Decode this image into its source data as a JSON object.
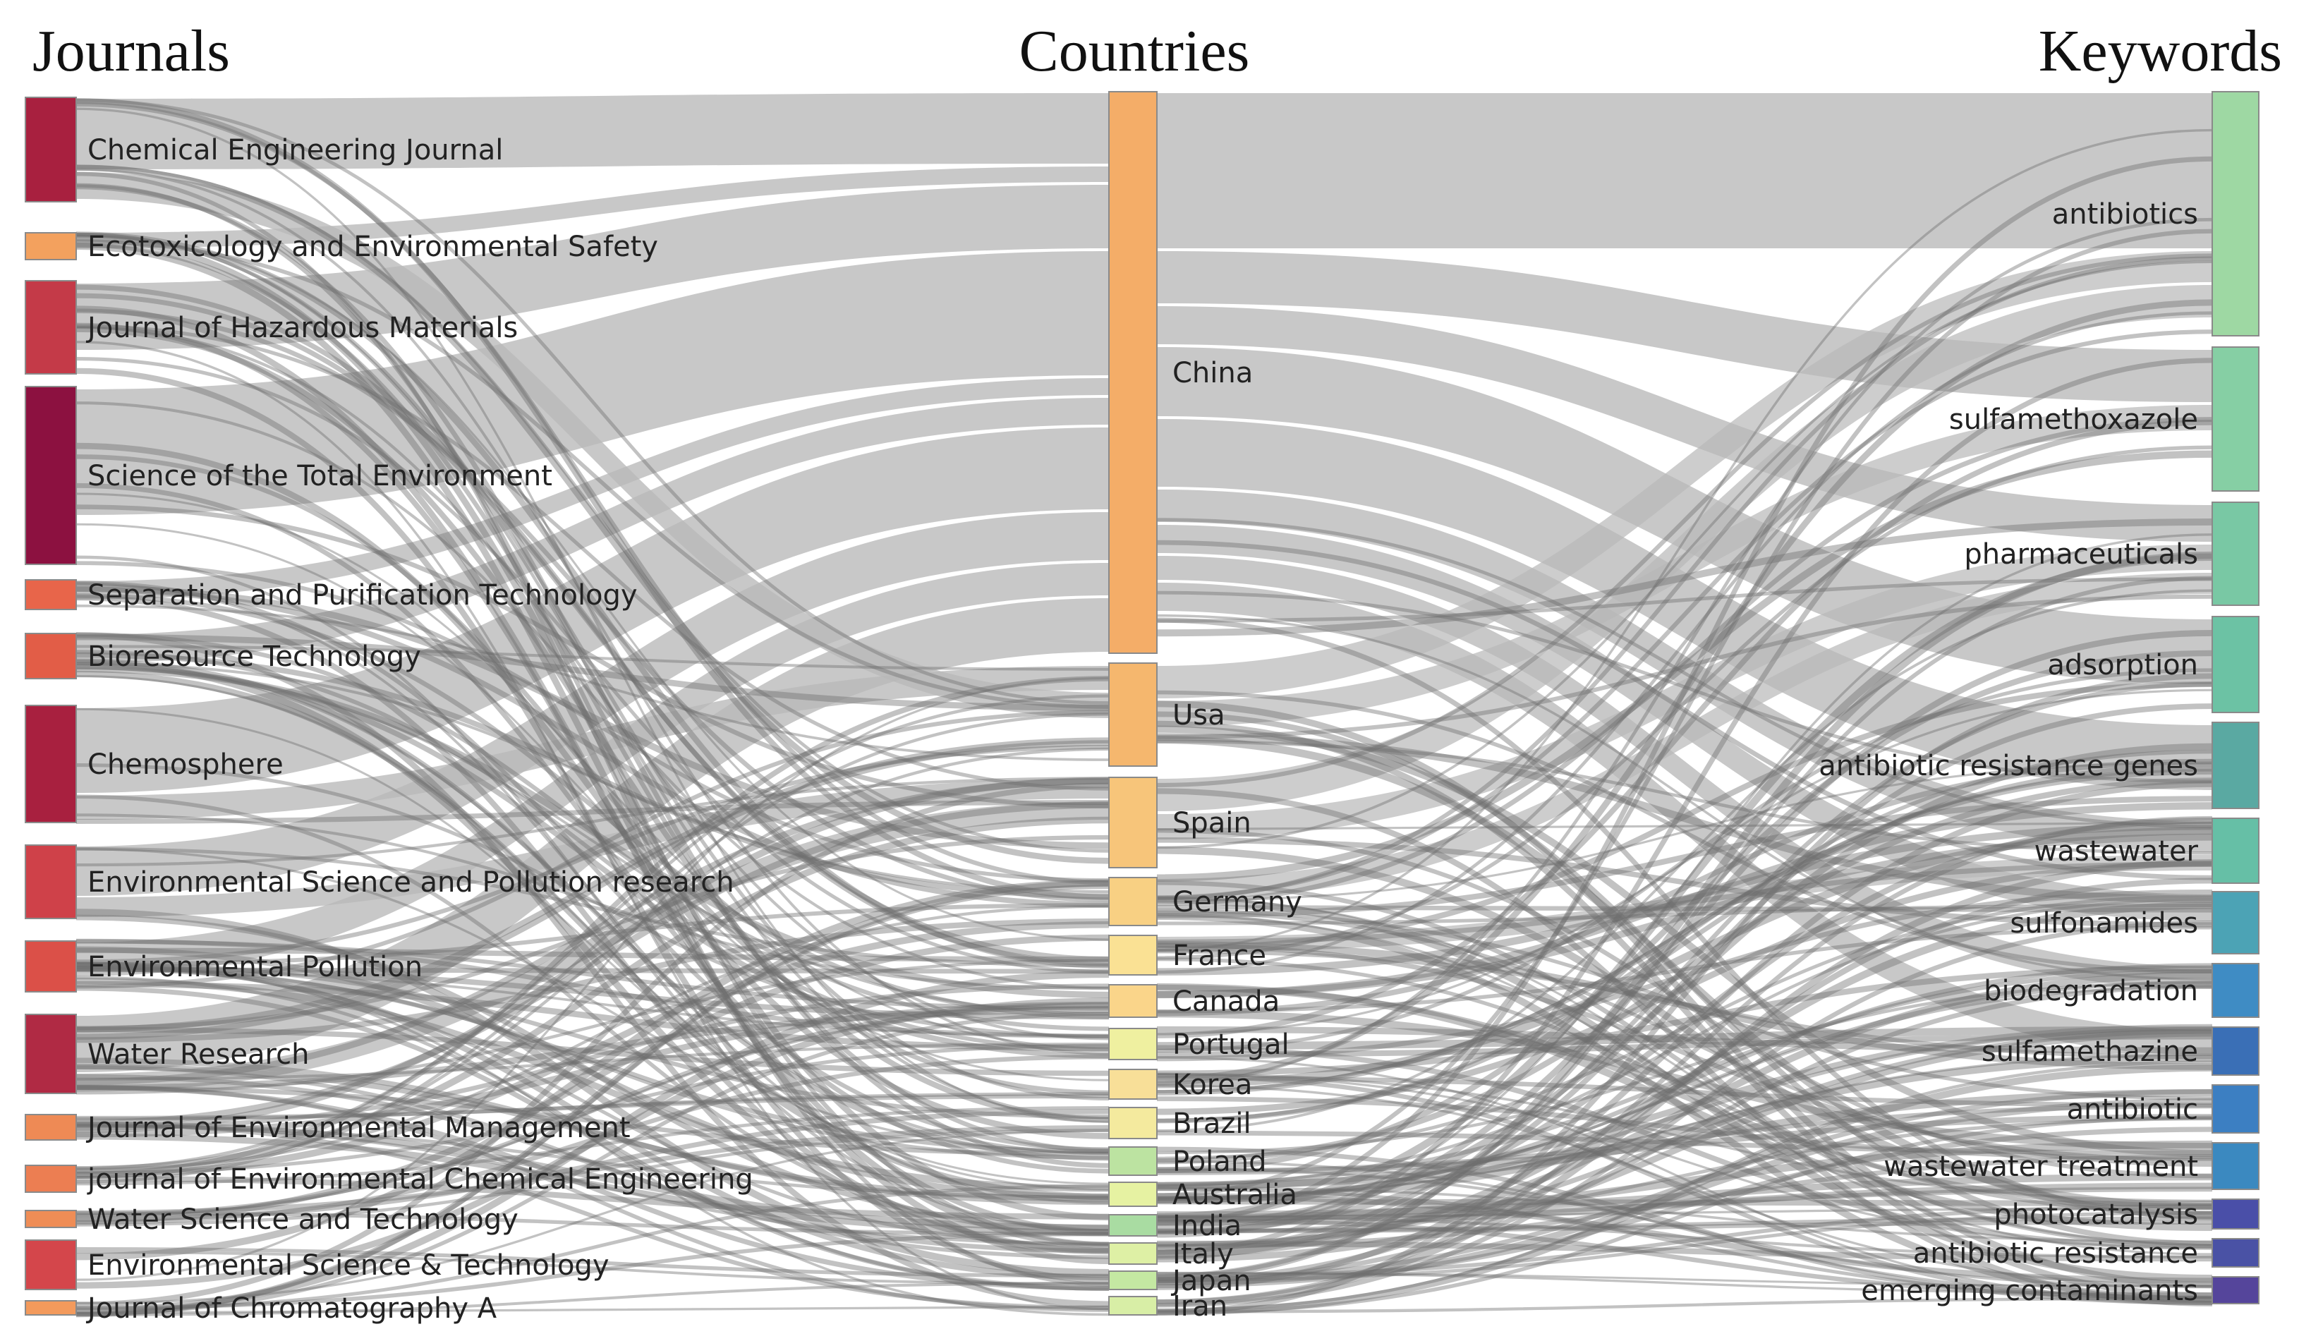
{
  "diagram": {
    "type": "sankey",
    "columns": [
      {
        "title": "Journals",
        "nodes": [
          {
            "name": "Chemical Engineering Journal",
            "color": "#a8203f"
          },
          {
            "name": "Ecotoxicology and Environmental Safety",
            "color": "#f3a15e"
          },
          {
            "name": "Journal of Hazardous Materials",
            "color": "#c43a48"
          },
          {
            "name": "Science of the Total Environment",
            "color": "#8c1140"
          },
          {
            "name": "Separation and Purification Technology",
            "color": "#e8654a"
          },
          {
            "name": "Bioresource Technology",
            "color": "#e25d47"
          },
          {
            "name": "Chemosphere",
            "color": "#a8203f"
          },
          {
            "name": "Environmental Science and Pollution research",
            "color": "#cf4149"
          },
          {
            "name": "Environmental Pollution",
            "color": "#db5048"
          },
          {
            "name": "Water Research",
            "color": "#b02a44"
          },
          {
            "name": "Journal of Environmental Management",
            "color": "#ee8a55"
          },
          {
            "name": "journal of Environmental Chemical Engineering",
            "color": "#ec7e52"
          },
          {
            "name": "Water Science and Technology",
            "color": "#ef8d56"
          },
          {
            "name": "Environmental Science & Technology",
            "color": "#d4464b"
          },
          {
            "name": "Journal of Chromatography A",
            "color": "#f39a5c"
          }
        ]
      },
      {
        "title": "Countries",
        "nodes": [
          {
            "name": "China",
            "color": "#f4ad68"
          },
          {
            "name": "Usa",
            "color": "#f5b76e"
          },
          {
            "name": "Spain",
            "color": "#f7c57a"
          },
          {
            "name": "Germany",
            "color": "#f8d083"
          },
          {
            "name": "France",
            "color": "#fae194"
          },
          {
            "name": "Canada",
            "color": "#fad58a"
          },
          {
            "name": "Portugal",
            "color": "#eff0a0"
          },
          {
            "name": "Korea",
            "color": "#f8df98"
          },
          {
            "name": "Brazil",
            "color": "#f4ea9e"
          },
          {
            "name": "Poland",
            "color": "#bce3a1"
          },
          {
            "name": "Australia",
            "color": "#e6f2a2"
          },
          {
            "name": "India",
            "color": "#a9dca2"
          },
          {
            "name": "Italy",
            "color": "#def0a5"
          },
          {
            "name": "Japan",
            "color": "#c4e8a2"
          },
          {
            "name": "Iran",
            "color": "#d8eea6"
          }
        ]
      },
      {
        "title": "Keywords",
        "nodes": [
          {
            "name": "antibiotics",
            "color": "#9ed8a3"
          },
          {
            "name": "sulfamethoxazole",
            "color": "#86cfa4"
          },
          {
            "name": "pharmaceuticals",
            "color": "#79c8a4"
          },
          {
            "name": "adsorption",
            "color": "#6cc2a4"
          },
          {
            "name": "antibiotic resistance genes",
            "color": "#5aa9a2"
          },
          {
            "name": "wastewater",
            "color": "#66bfa6"
          },
          {
            "name": "sulfonamides",
            "color": "#4ca3b5"
          },
          {
            "name": "biodegradation",
            "color": "#3f8cc4"
          },
          {
            "name": "sulfamethazine",
            "color": "#3a6fb6"
          },
          {
            "name": "antibiotic",
            "color": "#3c7fc2"
          },
          {
            "name": "wastewater treatment",
            "color": "#3b89c0"
          },
          {
            "name": "photocatalysis",
            "color": "#4a4fa8"
          },
          {
            "name": "antibiotic resistance",
            "color": "#4a52a5"
          },
          {
            "name": "emerging contaminants",
            "color": "#55459b"
          }
        ]
      }
    ],
    "link_color": "#b8b8b8",
    "thin_link_color": "#6e6e6e"
  }
}
